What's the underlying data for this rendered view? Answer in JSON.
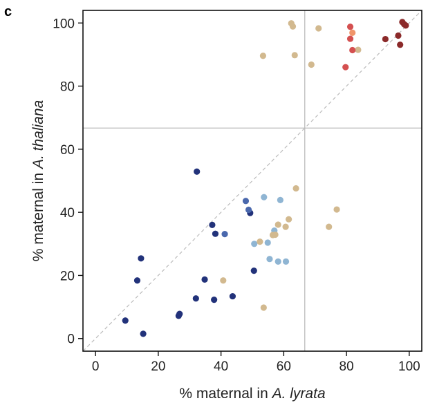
{
  "panel_label": "c",
  "chart_data": {
    "type": "scatter",
    "title": "",
    "xlabel": {
      "prefix": "% maternal in ",
      "italic": "A. lyrata"
    },
    "ylabel": {
      "prefix": "% maternal in ",
      "italic": "A. thaliana"
    },
    "xlim": [
      -4,
      104
    ],
    "ylim": [
      -4,
      104
    ],
    "xticks": [
      0,
      20,
      40,
      60,
      80,
      100
    ],
    "yticks": [
      0,
      20,
      40,
      60,
      80,
      100
    ],
    "grid": false,
    "legend": "none",
    "reference_lines": {
      "vertical_x": 66.7,
      "horizontal_y": 66.7,
      "diagonal": "y = x (dashed)"
    },
    "colors": {
      "dark_navy": "#22327a",
      "mid_blue": "#4a68ad",
      "light_blue": "#8fb5d3",
      "tan": "#d2b98f",
      "red": "#d45050",
      "orange": "#f0956a",
      "dark_red": "#8b2a2a",
      "ref_line": "#bbbbbb"
    },
    "points": [
      {
        "x": 9.5,
        "y": 5.7,
        "c": "dark_navy"
      },
      {
        "x": 15.2,
        "y": 1.5,
        "c": "dark_navy"
      },
      {
        "x": 13.3,
        "y": 18.4,
        "c": "dark_navy"
      },
      {
        "x": 14.5,
        "y": 25.4,
        "c": "dark_navy"
      },
      {
        "x": 26.5,
        "y": 7.2,
        "c": "dark_navy"
      },
      {
        "x": 26.8,
        "y": 7.8,
        "c": "dark_navy"
      },
      {
        "x": 32.0,
        "y": 12.7,
        "c": "dark_navy"
      },
      {
        "x": 34.8,
        "y": 18.7,
        "c": "dark_navy"
      },
      {
        "x": 37.8,
        "y": 12.3,
        "c": "dark_navy"
      },
      {
        "x": 43.7,
        "y": 13.4,
        "c": "dark_navy"
      },
      {
        "x": 50.5,
        "y": 21.5,
        "c": "dark_navy"
      },
      {
        "x": 32.3,
        "y": 52.9,
        "c": "dark_navy"
      },
      {
        "x": 37.2,
        "y": 36.0,
        "c": "dark_navy"
      },
      {
        "x": 38.2,
        "y": 33.2,
        "c": "dark_navy"
      },
      {
        "x": 49.3,
        "y": 39.8,
        "c": "dark_navy"
      },
      {
        "x": 41.2,
        "y": 33.1,
        "c": "mid_blue"
      },
      {
        "x": 47.9,
        "y": 43.6,
        "c": "mid_blue"
      },
      {
        "x": 48.8,
        "y": 40.8,
        "c": "mid_blue"
      },
      {
        "x": 53.7,
        "y": 44.8,
        "c": "light_blue"
      },
      {
        "x": 58.9,
        "y": 43.9,
        "c": "light_blue"
      },
      {
        "x": 50.6,
        "y": 30.0,
        "c": "light_blue"
      },
      {
        "x": 54.9,
        "y": 30.4,
        "c": "light_blue"
      },
      {
        "x": 57.0,
        "y": 34.2,
        "c": "light_blue"
      },
      {
        "x": 55.5,
        "y": 25.2,
        "c": "light_blue"
      },
      {
        "x": 58.2,
        "y": 24.4,
        "c": "light_blue"
      },
      {
        "x": 60.7,
        "y": 24.4,
        "c": "light_blue"
      },
      {
        "x": 40.7,
        "y": 18.4,
        "c": "tan"
      },
      {
        "x": 53.6,
        "y": 9.8,
        "c": "tan"
      },
      {
        "x": 52.4,
        "y": 30.7,
        "c": "tan"
      },
      {
        "x": 56.5,
        "y": 32.8,
        "c": "tan"
      },
      {
        "x": 57.3,
        "y": 32.9,
        "c": "tan"
      },
      {
        "x": 58.2,
        "y": 36.1,
        "c": "tan"
      },
      {
        "x": 60.6,
        "y": 35.4,
        "c": "tan"
      },
      {
        "x": 61.6,
        "y": 37.8,
        "c": "tan"
      },
      {
        "x": 63.9,
        "y": 47.6,
        "c": "tan"
      },
      {
        "x": 74.4,
        "y": 35.4,
        "c": "tan"
      },
      {
        "x": 76.9,
        "y": 40.9,
        "c": "tan"
      },
      {
        "x": 53.4,
        "y": 89.6,
        "c": "tan"
      },
      {
        "x": 62.4,
        "y": 99.9,
        "c": "tan"
      },
      {
        "x": 62.9,
        "y": 98.9,
        "c": "tan"
      },
      {
        "x": 63.5,
        "y": 89.8,
        "c": "tan"
      },
      {
        "x": 68.8,
        "y": 86.8,
        "c": "tan"
      },
      {
        "x": 71.1,
        "y": 98.3,
        "c": "tan"
      },
      {
        "x": 83.7,
        "y": 91.5,
        "c": "tan"
      },
      {
        "x": 79.7,
        "y": 86.0,
        "c": "red"
      },
      {
        "x": 81.2,
        "y": 98.8,
        "c": "red"
      },
      {
        "x": 81.2,
        "y": 95.0,
        "c": "red"
      },
      {
        "x": 81.9,
        "y": 91.4,
        "c": "red"
      },
      {
        "x": 81.9,
        "y": 96.9,
        "c": "orange"
      },
      {
        "x": 92.4,
        "y": 94.9,
        "c": "dark_red"
      },
      {
        "x": 96.5,
        "y": 96.0,
        "c": "dark_red"
      },
      {
        "x": 97.1,
        "y": 93.1,
        "c": "dark_red"
      },
      {
        "x": 97.8,
        "y": 100.3,
        "c": "dark_red"
      },
      {
        "x": 98.4,
        "y": 99.6,
        "c": "dark_red"
      },
      {
        "x": 98.9,
        "y": 99.2,
        "c": "dark_red"
      }
    ]
  }
}
